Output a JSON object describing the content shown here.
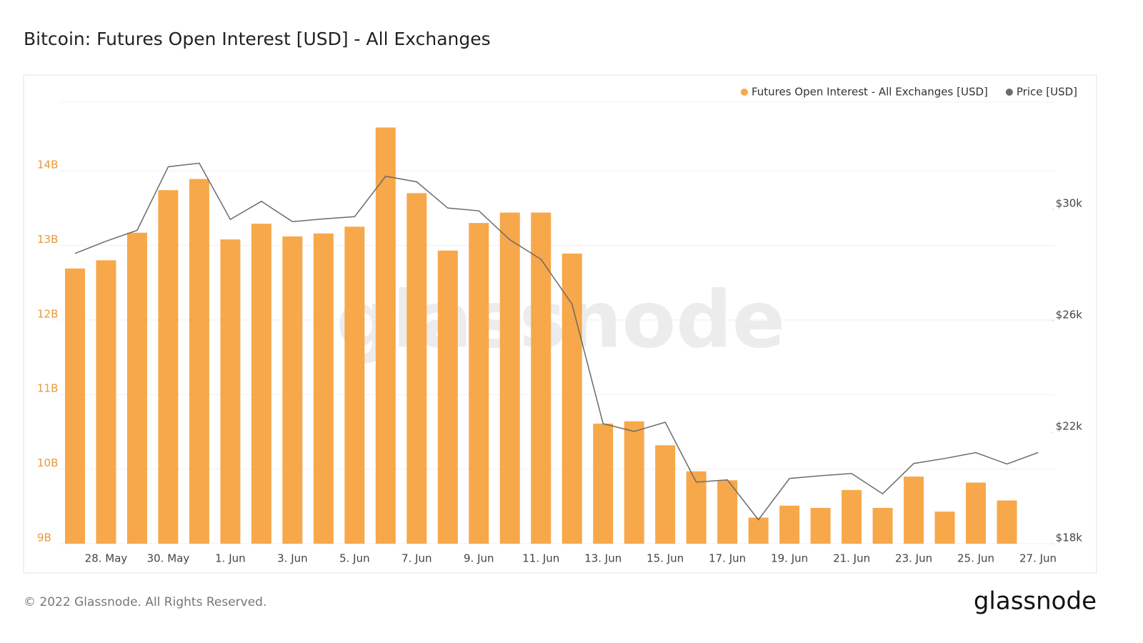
{
  "chart_data": {
    "type": "bar",
    "title": "Bitcoin: Futures Open Interest [USD] - All Exchanges",
    "categories": [
      null,
      "28. May",
      null,
      "30. May",
      null,
      "1. Jun",
      null,
      "3. Jun",
      null,
      "5. Jun",
      null,
      "7. Jun",
      null,
      "9. Jun",
      null,
      "11. Jun",
      null,
      "13. Jun",
      null,
      "15. Jun",
      null,
      "17. Jun",
      null,
      "19. Jun",
      null,
      "21. Jun",
      null,
      "23. Jun",
      null,
      "25. Jun",
      null,
      "27. Jun"
    ],
    "series": [
      {
        "name": "Futures Open Interest - All Exchanges [USD]",
        "color": "#f7a84a",
        "type": "bar",
        "values": [
          12690000000,
          12800000000,
          13170000000,
          13740000000,
          13890000000,
          13080000000,
          13290000000,
          13120000000,
          13160000000,
          13250000000,
          14580000000,
          13700000000,
          12930000000,
          13300000000,
          13440000000,
          13440000000,
          12890000000,
          10610000000,
          10640000000,
          10320000000,
          9970000000,
          9850000000,
          9350000000,
          9510000000,
          9480000000,
          9720000000,
          9480000000,
          9900000000,
          9430000000,
          9820000000,
          9580000000,
          null
        ]
      },
      {
        "name": "Price [USD]",
        "color": "#6b6b6b",
        "type": "line",
        "axis": "y2",
        "values": [
          28420,
          28860,
          29250,
          31530,
          31660,
          29640,
          30290,
          29560,
          29660,
          29740,
          31190,
          30990,
          30050,
          29950,
          28910,
          28210,
          26600,
          22310,
          22030,
          22360,
          20210,
          20290,
          18860,
          20340,
          20440,
          20520,
          19790,
          20880,
          21060,
          21270,
          20860,
          21270
        ]
      }
    ],
    "ylim": [
      9000000000,
      14920000000
    ],
    "yticks": [
      {
        "value": 9000000000,
        "label": "9B"
      },
      {
        "value": 10000000000,
        "label": "10B"
      },
      {
        "value": 11000000000,
        "label": "11B"
      },
      {
        "value": 12000000000,
        "label": "12B"
      },
      {
        "value": 13000000000,
        "label": "13B"
      },
      {
        "value": 14000000000,
        "label": "14B"
      }
    ],
    "y2lim": [
      18000,
      33850
    ],
    "y2ticks": [
      {
        "value": 18000,
        "label": "$18k"
      },
      {
        "value": 22000,
        "label": "$22k"
      },
      {
        "value": 26000,
        "label": "$26k"
      },
      {
        "value": 30000,
        "label": "$30k"
      }
    ],
    "grid": true,
    "legend": "top-right",
    "watermark": "glassnode",
    "footer": "© 2022 Glassnode. All Rights Reserved.",
    "logo": "glassnode"
  }
}
